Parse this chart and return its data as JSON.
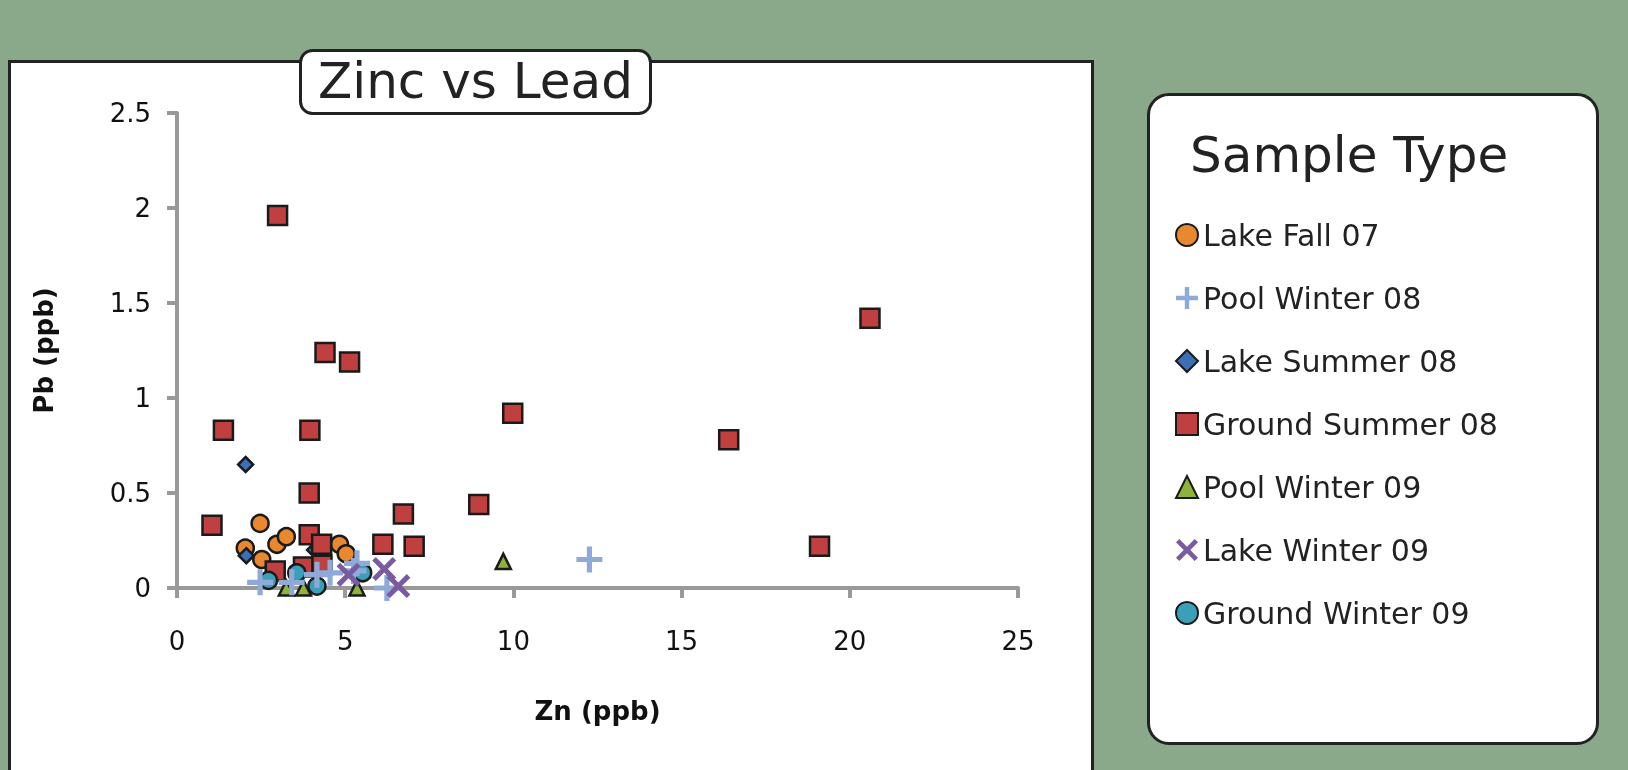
{
  "chart_data": {
    "type": "scatter",
    "title": "Zinc vs Lead",
    "xlabel": "Zn (ppb)",
    "ylabel": "Pb (ppb)",
    "legend_title": "Sample Type",
    "xlim": [
      0,
      25
    ],
    "xticks": [
      0,
      5,
      10,
      15,
      20,
      25
    ],
    "ylim": [
      0,
      2.5
    ],
    "yticks": [
      0,
      0.5,
      1,
      1.5,
      2,
      2.5
    ],
    "grid": false,
    "legend": "right",
    "series": [
      {
        "name": "Lake Fall 07",
        "color": "#e8892f",
        "marker": "circle",
        "x": [
          2.47,
          2.03,
          2.52,
          2.97,
          3.25,
          4.83,
          5.03
        ],
        "values": [
          0.34,
          0.21,
          0.15,
          0.23,
          0.27,
          0.23,
          0.18
        ]
      },
      {
        "name": "Pool Winter 08",
        "color": "#8fa9d9",
        "marker": "plus",
        "x": [
          2.47,
          3.41,
          4.16,
          4.55,
          5.25,
          5.35,
          6.24,
          12.26
        ],
        "values": [
          0.03,
          0.03,
          0.07,
          0.08,
          0.09,
          0.13,
          0.0,
          0.15
        ]
      },
      {
        "name": "Lake Summer 08",
        "color": "#3d6fb5",
        "marker": "diamond",
        "x": [
          2.04,
          2.06,
          4.09
        ],
        "values": [
          0.65,
          0.17,
          0.2
        ]
      },
      {
        "name": "Ground Summer 08",
        "color": "#c0403f",
        "marker": "square",
        "x": [
          2.99,
          4.4,
          5.13,
          20.6,
          1.38,
          3.95,
          9.98,
          16.4,
          3.93,
          1.04,
          6.73,
          8.97,
          6.12,
          7.05,
          19.1,
          3.93,
          4.3,
          2.92,
          3.76,
          4.31
        ],
        "values": [
          1.96,
          1.24,
          1.19,
          1.42,
          0.83,
          0.83,
          0.92,
          0.78,
          0.5,
          0.33,
          0.39,
          0.44,
          0.23,
          0.22,
          0.22,
          0.28,
          0.23,
          0.09,
          0.11,
          0.12
        ]
      },
      {
        "name": "Pool Winter 09",
        "color": "#8db33a",
        "marker": "triangle",
        "x": [
          3.25,
          3.76,
          5.35,
          9.7
        ],
        "values": [
          0.0,
          0.0,
          0.0,
          0.14
        ]
      },
      {
        "name": "Lake Winter 09",
        "color": "#7a5aa0",
        "marker": "cross",
        "x": [
          6.16,
          6.58,
          5.1
        ],
        "values": [
          0.1,
          0.01,
          0.07
        ]
      },
      {
        "name": "Ground Winter 09",
        "color": "#3aa0b8",
        "marker": "circle",
        "x": [
          2.72,
          3.56,
          4.16,
          5.52
        ],
        "values": [
          0.04,
          0.08,
          0.01,
          0.08
        ]
      }
    ]
  }
}
